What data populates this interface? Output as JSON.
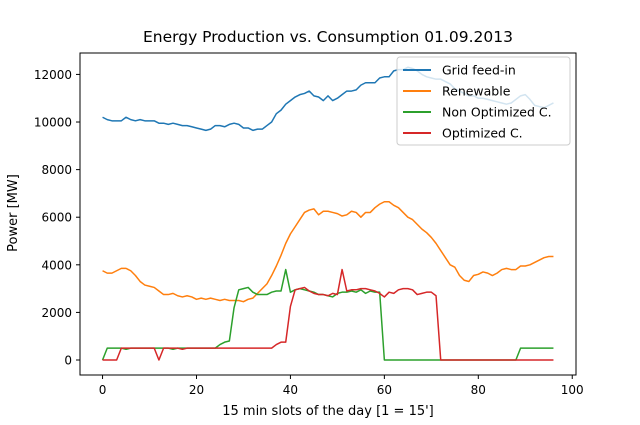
{
  "chart_data": {
    "type": "line",
    "title": "Energy Production vs. Consumption 01.09.2013",
    "xlabel": "15 min slots of the day [1 = 15']",
    "ylabel": "Power [MW]",
    "xlim": [
      -4.8,
      100.8
    ],
    "ylim": [
      -630,
      12900
    ],
    "xticks": [
      0,
      20,
      40,
      60,
      80,
      100
    ],
    "yticks": [
      0,
      2000,
      4000,
      6000,
      8000,
      10000,
      12000
    ],
    "grid": false,
    "legend_position": "top-right",
    "series": [
      {
        "name": "Grid feed-in",
        "color": "#1f77b4",
        "x": [
          0,
          1,
          2,
          3,
          4,
          5,
          6,
          7,
          8,
          9,
          10,
          11,
          12,
          13,
          14,
          15,
          16,
          17,
          18,
          19,
          20,
          21,
          22,
          23,
          24,
          25,
          26,
          27,
          28,
          29,
          30,
          31,
          32,
          33,
          34,
          35,
          36,
          37,
          38,
          39,
          40,
          41,
          42,
          43,
          44,
          45,
          46,
          47,
          48,
          49,
          50,
          51,
          52,
          53,
          54,
          55,
          56,
          57,
          58,
          59,
          60,
          61,
          62,
          63,
          64,
          65,
          66,
          67,
          68,
          69,
          70,
          71,
          72,
          73,
          74,
          75,
          76,
          77,
          78,
          79,
          80,
          81,
          82,
          83,
          84,
          85,
          86,
          87,
          88,
          89,
          90,
          91,
          92,
          93,
          94,
          95,
          96
        ],
        "values": [
          10200,
          10100,
          10050,
          10050,
          10050,
          10200,
          10100,
          10050,
          10100,
          10050,
          10050,
          10050,
          9950,
          9950,
          9900,
          9950,
          9900,
          9850,
          9850,
          9800,
          9750,
          9700,
          9650,
          9700,
          9850,
          9850,
          9800,
          9900,
          9950,
          9900,
          9750,
          9750,
          9650,
          9700,
          9700,
          9850,
          10000,
          10350,
          10500,
          10750,
          10900,
          11050,
          11150,
          11200,
          11300,
          11100,
          11050,
          10900,
          11100,
          10900,
          11000,
          11150,
          11300,
          11300,
          11350,
          11550,
          11650,
          11650,
          11650,
          11850,
          11900,
          11900,
          12150,
          12200,
          12200,
          12300,
          12250,
          12150,
          12000,
          11900,
          11850,
          11800,
          11800,
          11700,
          11600,
          11400,
          11300,
          11200,
          11100,
          11100,
          11000,
          11000,
          10950,
          10900,
          10850,
          10800,
          10750,
          10800,
          10950,
          11100,
          11150,
          10950,
          10700,
          10650,
          10600,
          10700,
          10800
        ]
      },
      {
        "name": "Renewable",
        "color": "#ff7f0e",
        "x": [
          0,
          1,
          2,
          3,
          4,
          5,
          6,
          7,
          8,
          9,
          10,
          11,
          12,
          13,
          14,
          15,
          16,
          17,
          18,
          19,
          20,
          21,
          22,
          23,
          24,
          25,
          26,
          27,
          28,
          29,
          30,
          31,
          32,
          33,
          34,
          35,
          36,
          37,
          38,
          39,
          40,
          41,
          42,
          43,
          44,
          45,
          46,
          47,
          48,
          49,
          50,
          51,
          52,
          53,
          54,
          55,
          56,
          57,
          58,
          59,
          60,
          61,
          62,
          63,
          64,
          65,
          66,
          67,
          68,
          69,
          70,
          71,
          72,
          73,
          74,
          75,
          76,
          77,
          78,
          79,
          80,
          81,
          82,
          83,
          84,
          85,
          86,
          87,
          88,
          89,
          90,
          91,
          92,
          93,
          94,
          95,
          96
        ],
        "values": [
          3750,
          3650,
          3650,
          3750,
          3850,
          3850,
          3750,
          3550,
          3300,
          3150,
          3100,
          3050,
          2900,
          2750,
          2750,
          2800,
          2700,
          2650,
          2700,
          2650,
          2550,
          2600,
          2550,
          2600,
          2550,
          2500,
          2550,
          2500,
          2500,
          2500,
          2450,
          2550,
          2600,
          2800,
          3000,
          3200,
          3550,
          3950,
          4400,
          4900,
          5300,
          5600,
          5900,
          6200,
          6300,
          6350,
          6100,
          6250,
          6250,
          6200,
          6150,
          6050,
          6100,
          6250,
          6200,
          6000,
          6200,
          6200,
          6400,
          6550,
          6650,
          6650,
          6500,
          6400,
          6200,
          6000,
          5900,
          5700,
          5500,
          5350,
          5150,
          4900,
          4600,
          4300,
          4000,
          3900,
          3550,
          3350,
          3300,
          3550,
          3600,
          3700,
          3650,
          3550,
          3650,
          3800,
          3850,
          3800,
          3800,
          3950,
          3950,
          4000,
          4100,
          4200,
          4300,
          4350,
          4350
        ]
      },
      {
        "name": "Non Optimized C.",
        "color": "#2ca02c",
        "x": [
          0,
          1,
          2,
          3,
          4,
          5,
          6,
          7,
          8,
          9,
          10,
          11,
          12,
          13,
          14,
          15,
          16,
          17,
          18,
          19,
          20,
          21,
          22,
          23,
          24,
          25,
          26,
          27,
          28,
          29,
          30,
          31,
          32,
          33,
          34,
          35,
          36,
          37,
          38,
          39,
          40,
          41,
          42,
          43,
          44,
          45,
          46,
          47,
          48,
          49,
          50,
          51,
          52,
          53,
          54,
          55,
          56,
          57,
          58,
          59,
          60,
          61,
          62,
          63,
          64,
          65,
          66,
          67,
          68,
          69,
          70,
          71,
          72,
          73,
          74,
          75,
          76,
          77,
          78,
          79,
          80,
          81,
          82,
          83,
          84,
          85,
          86,
          87,
          88,
          89,
          90,
          91,
          92,
          93,
          94,
          95,
          96
        ],
        "values": [
          0,
          500,
          500,
          500,
          500,
          450,
          500,
          500,
          500,
          500,
          500,
          500,
          500,
          500,
          500,
          450,
          500,
          500,
          500,
          500,
          500,
          500,
          500,
          500,
          500,
          650,
          750,
          800,
          2200,
          2950,
          3000,
          3050,
          2850,
          2750,
          2750,
          2750,
          2850,
          2900,
          2900,
          3800,
          2850,
          2950,
          3000,
          2950,
          2900,
          2850,
          2750,
          2750,
          2700,
          2650,
          2800,
          2850,
          2850,
          2900,
          2850,
          2950,
          2800,
          2900,
          2850,
          2850,
          0,
          0,
          0,
          0,
          0,
          0,
          0,
          0,
          0,
          0,
          0,
          0,
          0,
          0,
          0,
          0,
          0,
          0,
          0,
          0,
          0,
          0,
          0,
          0,
          0,
          0,
          0,
          0,
          0,
          500,
          500,
          500,
          500,
          500,
          500,
          500,
          500
        ]
      },
      {
        "name": "Optimized C.",
        "color": "#d62728",
        "x": [
          0,
          1,
          2,
          3,
          4,
          5,
          6,
          7,
          8,
          9,
          10,
          11,
          12,
          13,
          14,
          15,
          16,
          17,
          18,
          19,
          20,
          21,
          22,
          23,
          24,
          25,
          26,
          27,
          28,
          29,
          30,
          31,
          32,
          33,
          34,
          35,
          36,
          37,
          38,
          39,
          40,
          41,
          42,
          43,
          44,
          45,
          46,
          47,
          48,
          49,
          50,
          51,
          52,
          53,
          54,
          55,
          56,
          57,
          58,
          59,
          60,
          61,
          62,
          63,
          64,
          65,
          66,
          67,
          68,
          69,
          70,
          71,
          72,
          73,
          74,
          75,
          76,
          77,
          78,
          79,
          80,
          81,
          82,
          83,
          84,
          85,
          86,
          87,
          88,
          89,
          90,
          91,
          92,
          93,
          94,
          95,
          96
        ],
        "values": [
          0,
          0,
          0,
          0,
          500,
          500,
          500,
          500,
          500,
          500,
          500,
          500,
          0,
          500,
          500,
          500,
          500,
          450,
          500,
          500,
          500,
          500,
          500,
          500,
          500,
          500,
          500,
          500,
          500,
          500,
          500,
          500,
          500,
          500,
          500,
          500,
          500,
          650,
          750,
          750,
          2250,
          2950,
          3000,
          3050,
          2900,
          2800,
          2750,
          2750,
          2700,
          2800,
          2750,
          3800,
          2900,
          2950,
          2950,
          3000,
          3000,
          2950,
          2900,
          2800,
          2650,
          2850,
          2800,
          2950,
          3000,
          3000,
          2950,
          2750,
          2800,
          2850,
          2850,
          2700,
          0,
          0,
          0,
          0,
          0,
          0,
          0,
          0,
          0,
          0,
          0,
          0,
          0,
          0,
          0,
          0,
          0,
          0,
          0,
          0,
          0,
          0,
          0,
          0,
          0
        ]
      }
    ]
  }
}
